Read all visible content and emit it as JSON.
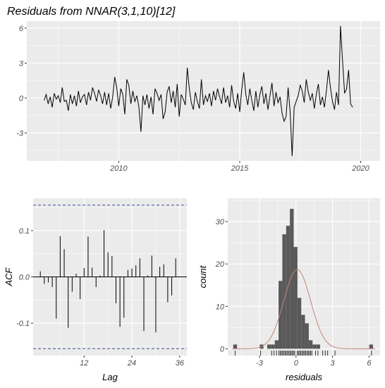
{
  "chart_data": [
    {
      "type": "line",
      "title": "Residuals from NNAR(3,1,10)[12]",
      "xlabel": "",
      "ylabel": "",
      "xlim": [
        2006.2,
        2020.8
      ],
      "ylim": [
        -5.4,
        6.6
      ],
      "x_ticks": [
        2010,
        2015,
        2020
      ],
      "x_tick_labels": [
        "2010",
        "2015",
        "2020"
      ],
      "y_ticks": [
        -3,
        0,
        3,
        6
      ],
      "y_tick_labels": [
        "-3",
        "0",
        "3",
        "6"
      ],
      "grid": true,
      "x_start": 2006.917,
      "x_step": 0.08333,
      "values": [
        -0.2,
        0.3,
        -0.5,
        0.1,
        -0.8,
        0.4,
        -0.1,
        0.2,
        -0.4,
        0.9,
        -0.3,
        -0.2,
        -1.1,
        0.3,
        -0.5,
        0.2,
        -0.7,
        0.6,
        -0.4,
        0.1,
        0.3,
        -0.6,
        0.5,
        -0.2,
        0.9,
        0.4,
        -0.3,
        0.7,
        0.2,
        -0.5,
        0.5,
        -0.6,
        0.4,
        -0.9,
        0.1,
        1.8,
        0.9,
        -0.7,
        0.8,
        0.3,
        -1.4,
        1.6,
        1.1,
        -0.5,
        0.6,
        -0.3,
        0.2,
        -0.8,
        -2.9,
        0.2,
        -0.6,
        0.3,
        -0.9,
        0.1,
        -1.4,
        0.8,
        0.4,
        -0.2,
        0.3,
        -1.8,
        -1.2,
        0.5,
        1.0,
        -0.4,
        0.6,
        -0.8,
        1.2,
        -1.6,
        0.3,
        -0.1,
        -0.6,
        2.6,
        0.8,
        -0.4,
        -1.0,
        0.5,
        -0.3,
        -0.9,
        1.6,
        -0.6,
        0.2,
        -0.3,
        0.4,
        -0.7,
        0.6,
        -0.2,
        0.8,
        0.1,
        -0.5,
        0.9,
        -0.4,
        0.2,
        -0.8,
        1.1,
        -0.3,
        -0.9,
        0.4,
        -1.2,
        0.7,
        2.2,
        0.3,
        -0.6,
        0.8,
        -0.2,
        -1.1,
        0.6,
        -0.8,
        0.3,
        1.0,
        -0.5,
        0.4,
        -1.0,
        0.2,
        1.3,
        -0.7,
        0.5,
        -0.4,
        0.1,
        -1.3,
        -2.0,
        -1.6,
        0.9,
        -1.2,
        -5.0,
        -0.8,
        -0.3,
        0.2,
        1.1,
        0.6,
        -0.4,
        1.6,
        0.5,
        -0.2,
        0.4,
        -0.9,
        0.3,
        1.2,
        -0.6,
        0.1,
        -0.8,
        0.6,
        2.4,
        0.9,
        -0.3,
        -1.0,
        0.5,
        -0.6,
        6.2,
        3.2,
        0.4,
        0.8,
        2.4,
        -0.5,
        -0.8
      ]
    },
    {
      "type": "bar",
      "xlabel": "Lag",
      "ylabel": "ACF",
      "xlim": [
        -0.8,
        37.8
      ],
      "ylim": [
        -0.17,
        0.17
      ],
      "x_ticks": [
        12,
        24,
        36
      ],
      "x_tick_labels": [
        "12",
        "24",
        "36"
      ],
      "y_ticks": [
        -0.1,
        0.0,
        0.1
      ],
      "y_tick_labels": [
        "-0.1",
        "0.0",
        "0.1"
      ],
      "confidence_bound": 0.155,
      "grid": true,
      "lags": [
        1,
        2,
        3,
        4,
        5,
        6,
        7,
        8,
        9,
        10,
        11,
        12,
        13,
        14,
        15,
        16,
        17,
        18,
        19,
        20,
        21,
        22,
        23,
        24,
        25,
        26,
        27,
        28,
        29,
        30,
        31,
        32,
        33,
        34,
        35,
        36
      ],
      "values": [
        0.012,
        -0.015,
        -0.012,
        -0.022,
        -0.09,
        0.088,
        0.06,
        -0.11,
        -0.032,
        0.007,
        -0.048,
        0.019,
        0.087,
        0.02,
        -0.022,
        0.003,
        0.101,
        0.053,
        0.045,
        -0.057,
        -0.108,
        -0.088,
        0.015,
        0.018,
        0.025,
        0.04,
        -0.117,
        0.003,
        0.046,
        -0.12,
        0.022,
        0.027,
        -0.055,
        -0.04,
        0.04,
        0.0
      ]
    },
    {
      "type": "histogram",
      "xlabel": "residuals",
      "ylabel": "count",
      "xlim": [
        -5.6,
        6.9
      ],
      "ylim": [
        -1.6,
        35.5
      ],
      "x_ticks": [
        -3,
        0,
        3,
        6
      ],
      "x_tick_labels": [
        "-3",
        "0",
        "3",
        "6"
      ],
      "y_ticks": [
        0,
        10,
        20,
        30
      ],
      "y_tick_labels": [
        "0",
        "10",
        "20",
        "30"
      ],
      "grid": true,
      "bin_width": 0.31,
      "bin_start": -5.15,
      "counts": [
        1,
        0,
        0,
        0,
        0,
        0,
        0,
        1,
        0,
        1,
        1,
        2,
        16,
        27,
        29,
        33,
        24,
        12,
        8,
        6,
        2,
        1,
        1,
        0,
        0,
        0,
        0,
        0,
        0,
        0,
        0,
        0,
        0,
        0,
        0,
        0,
        1
      ],
      "density_curve": {
        "mean": 0.1,
        "sd": 1.1,
        "color": "#c0877a"
      },
      "bar_color": "#595959",
      "rug": [
        -5.0,
        -2.9,
        -2.0,
        -1.8,
        -1.6,
        -1.4,
        -1.3,
        -1.2,
        -1.1,
        -1.0,
        -0.9,
        -0.8,
        -0.7,
        -0.6,
        -0.5,
        -0.4,
        -0.3,
        -0.2,
        -0.1,
        0.1,
        0.2,
        0.3,
        0.4,
        0.5,
        0.6,
        0.7,
        0.8,
        0.9,
        1.0,
        1.1,
        1.2,
        1.3,
        1.6,
        1.8,
        2.2,
        2.4,
        2.6,
        3.2,
        6.2
      ]
    }
  ]
}
